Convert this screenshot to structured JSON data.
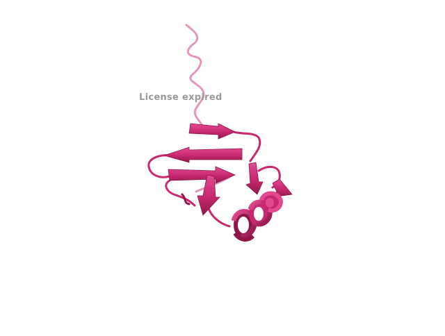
{
  "viewer": {
    "watermark_text": "License expired"
  },
  "structure": {
    "representation": "cartoon",
    "colors": {
      "main": "#c8286f",
      "light": "#e24a90",
      "dark": "#8e1848",
      "tail": "#e497bd",
      "background": "#ffffff"
    }
  }
}
